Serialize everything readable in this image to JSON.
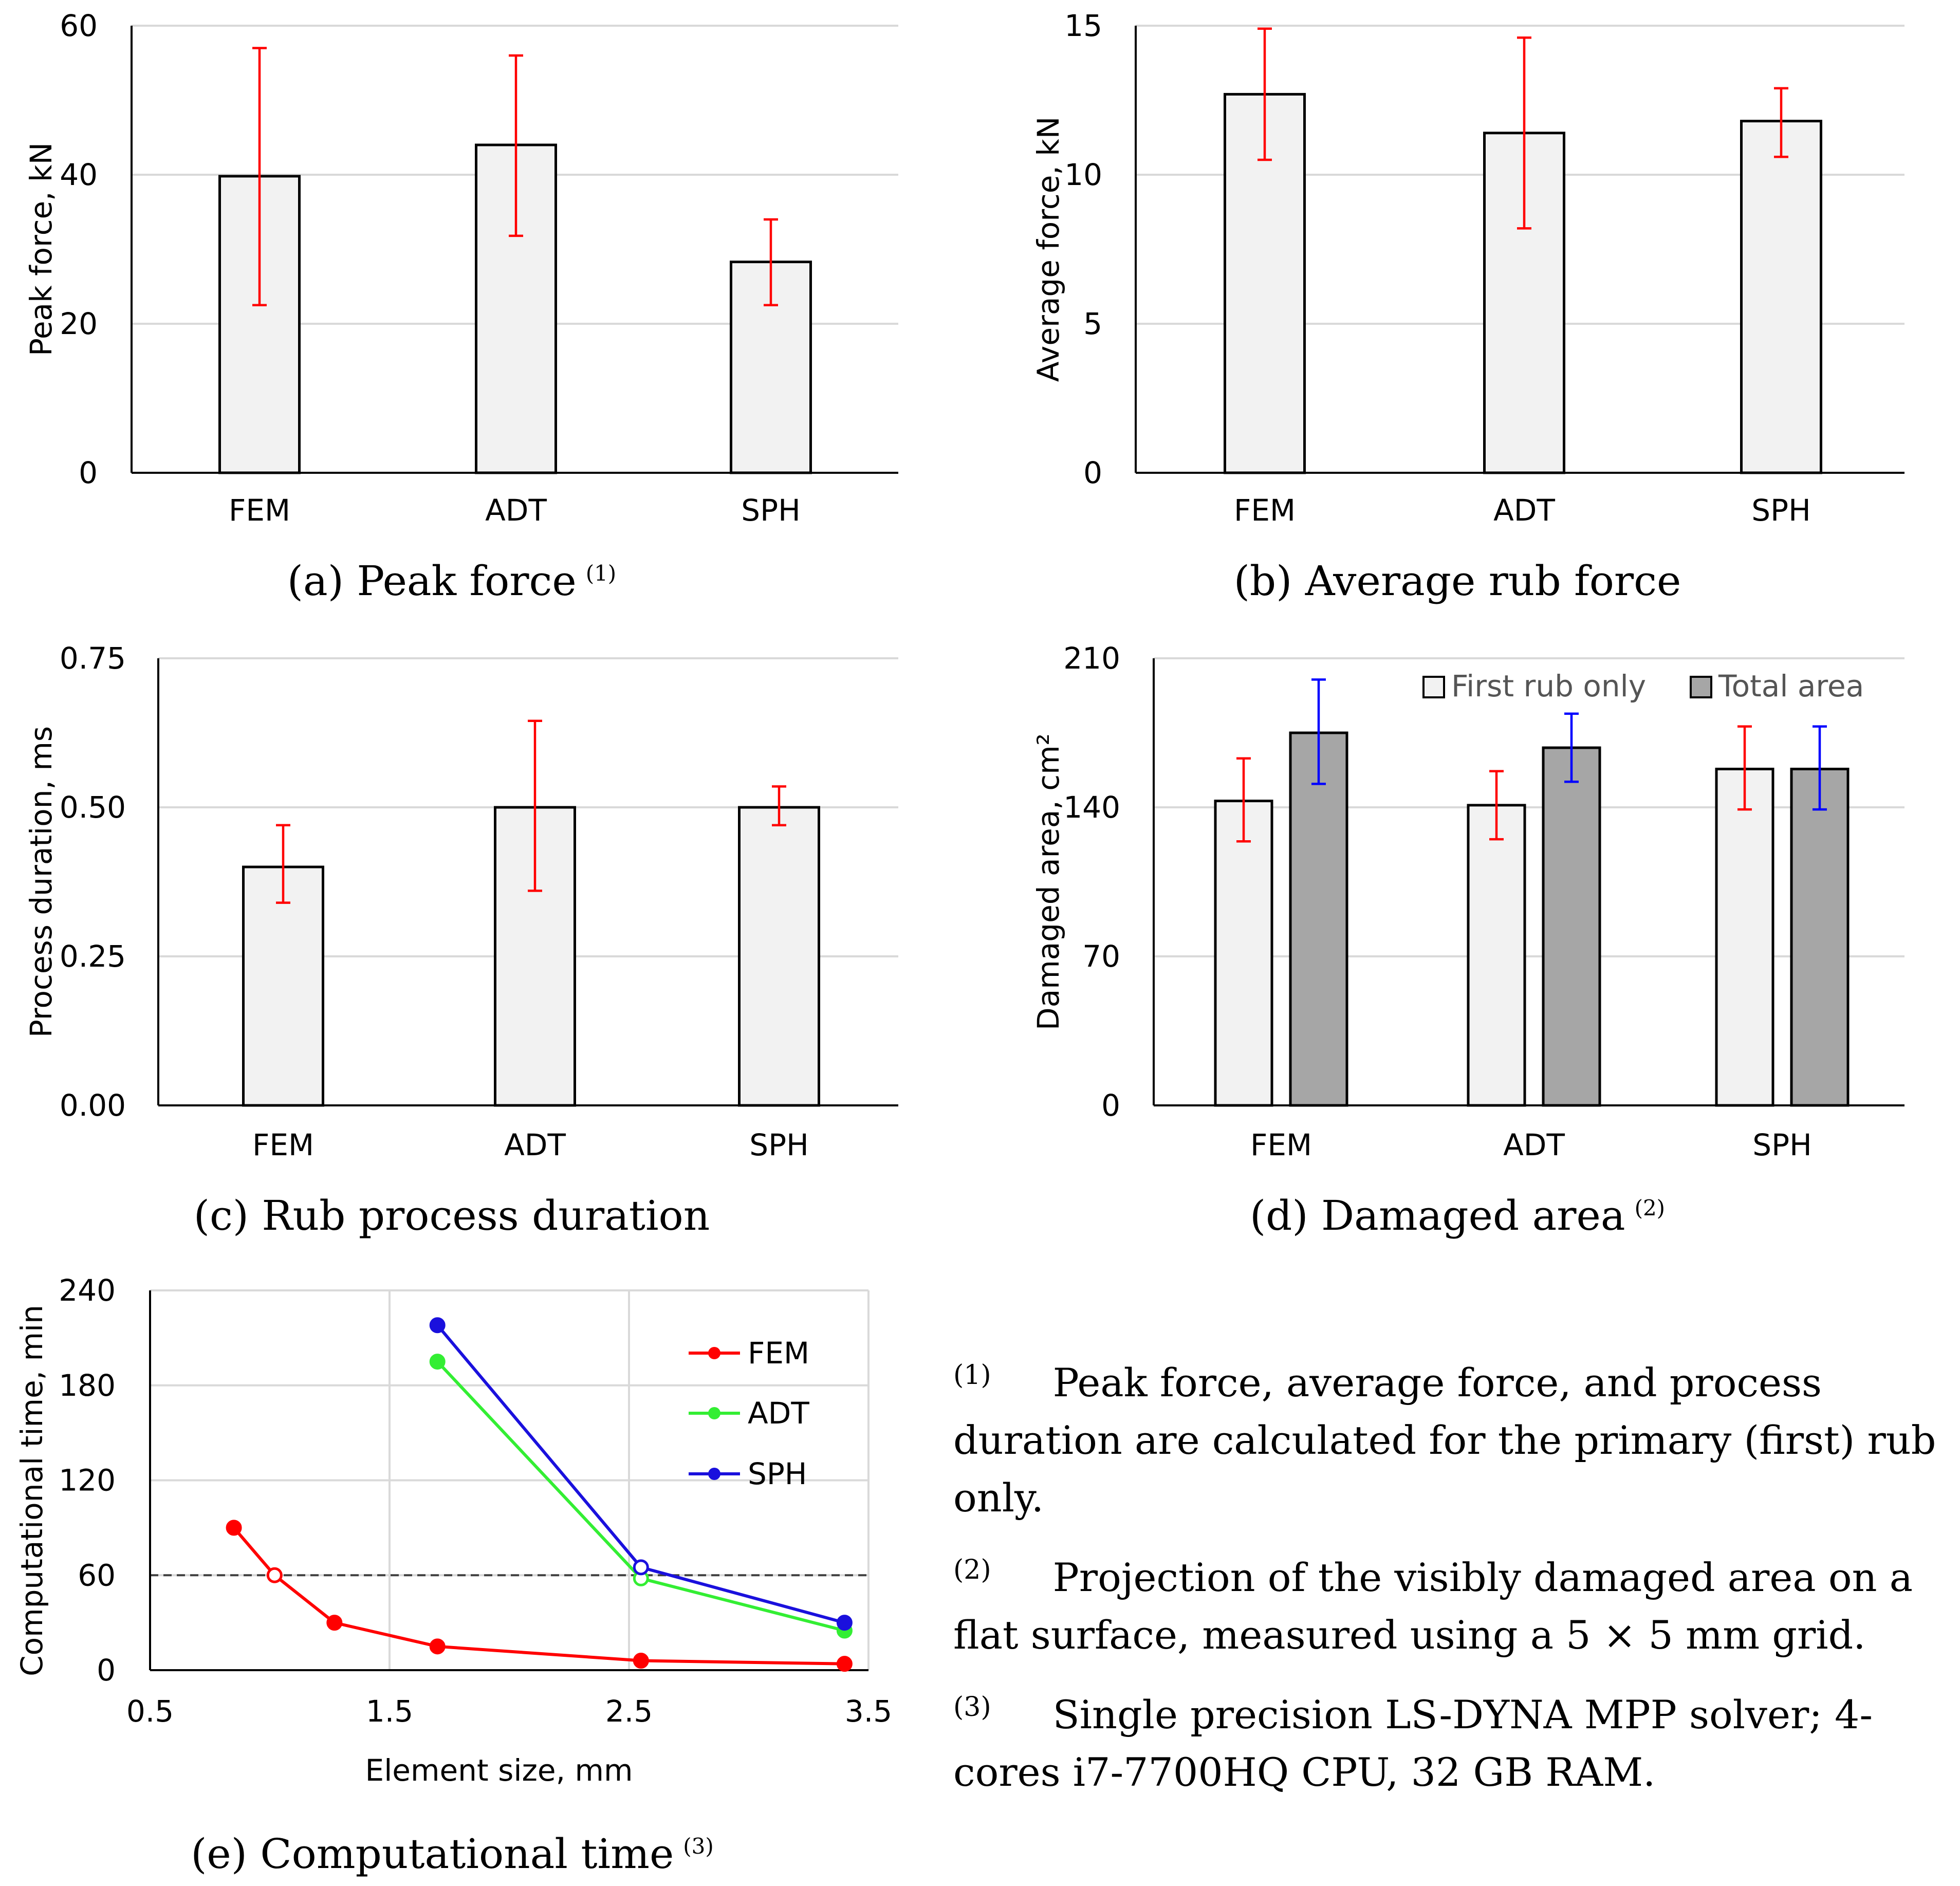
{
  "colors": {
    "bar_fill": "#f2f2f2",
    "bar_fill_dark": "#a6a6a6",
    "error_red": "#ff0000",
    "error_blue": "#0000ff",
    "fem": "#ff0000",
    "adt": "#33ee33",
    "sph": "#1a10dd",
    "ref_line": "#404040"
  },
  "chart_data": [
    {
      "id": "a",
      "type": "bar",
      "caption": "(a) Peak force",
      "caption_sup": "(1)",
      "ylabel": "Peak force, kN",
      "categories": [
        "FEM",
        "ADT",
        "SPH"
      ],
      "values": [
        39.8,
        44.0,
        28.3
      ],
      "error_low": [
        22.5,
        31.8,
        22.5
      ],
      "error_high": [
        57.0,
        56.0,
        34.0
      ],
      "ylim": [
        0,
        60
      ],
      "yticks": [
        0,
        20,
        40,
        60
      ],
      "ytick_labels": [
        "0",
        "20",
        "40",
        "60"
      ]
    },
    {
      "id": "b",
      "type": "bar",
      "caption": "(b) Average rub force",
      "ylabel": "Average force, kN",
      "categories": [
        "FEM",
        "ADT",
        "SPH"
      ],
      "values": [
        12.7,
        11.4,
        11.8
      ],
      "error_low": [
        10.5,
        8.2,
        10.6
      ],
      "error_high": [
        14.9,
        14.6,
        12.9
      ],
      "ylim": [
        0,
        15
      ],
      "yticks": [
        0,
        5,
        10,
        15
      ],
      "ytick_labels": [
        "0",
        "5",
        "10",
        "15"
      ]
    },
    {
      "id": "c",
      "type": "bar",
      "caption": "(c) Rub process duration",
      "ylabel": "Process duration, ms",
      "categories": [
        "FEM",
        "ADT",
        "SPH"
      ],
      "values": [
        0.4,
        0.5,
        0.5
      ],
      "error_low": [
        0.34,
        0.36,
        0.47
      ],
      "error_high": [
        0.47,
        0.645,
        0.535
      ],
      "ylim": [
        0,
        0.75
      ],
      "yticks": [
        0,
        0.25,
        0.5,
        0.75
      ],
      "ytick_labels": [
        "0.00",
        "0.25",
        "0.50",
        "0.75"
      ]
    },
    {
      "id": "d",
      "type": "bar",
      "caption": "(d) Damaged area",
      "caption_sup": "(2)",
      "ylabel": "Damaged area, cm²",
      "categories": [
        "FEM",
        "ADT",
        "SPH"
      ],
      "series": [
        {
          "name": "First rub only",
          "values": [
            143,
            141,
            158
          ],
          "error_low": [
            124,
            125,
            139
          ],
          "error_high": [
            163,
            157,
            178
          ]
        },
        {
          "name": "Total area",
          "values": [
            175,
            168,
            158
          ],
          "error_low": [
            151,
            152,
            139
          ],
          "error_high": [
            200,
            184,
            178
          ]
        }
      ],
      "ylim": [
        0,
        210
      ],
      "yticks": [
        0,
        70,
        140,
        210
      ],
      "ytick_labels": [
        "0",
        "70",
        "140",
        "210"
      ]
    },
    {
      "id": "e",
      "type": "line",
      "caption": "(e) Computational time",
      "caption_sup": "(3)",
      "xlabel": "Element size, mm",
      "ylabel": "Computational time, min",
      "xlim": [
        0.5,
        3.5
      ],
      "ylim": [
        0,
        240
      ],
      "xticks": [
        0.5,
        1.5,
        2.5,
        3.5
      ],
      "xtick_labels": [
        "0.5",
        "1.5",
        "2.5",
        "3.5"
      ],
      "yticks": [
        0,
        60,
        120,
        180,
        240
      ],
      "ytick_labels": [
        "0",
        "60",
        "120",
        "180",
        "240"
      ],
      "reference_line_y": 60,
      "series": [
        {
          "name": "FEM",
          "x": [
            0.85,
            1.02,
            1.27,
            1.7,
            2.55,
            3.4
          ],
          "y": [
            90,
            60,
            30,
            15,
            6,
            4
          ],
          "hollow_index": 1
        },
        {
          "name": "ADT",
          "x": [
            1.7,
            2.55,
            3.4
          ],
          "y": [
            195,
            58,
            25
          ],
          "hollow_index": 1
        },
        {
          "name": "SPH",
          "x": [
            1.7,
            2.55,
            3.4
          ],
          "y": [
            218,
            65,
            30
          ],
          "hollow_index": 1
        }
      ]
    }
  ],
  "notes": [
    {
      "num": "(1)",
      "text": "Peak force, average force, and process duration are calculated for the primary (first) rub only."
    },
    {
      "num": "(2)",
      "text": "Projection of the visibly damaged area on a flat surface, measured using a 5 × 5 mm grid."
    },
    {
      "num": "(3)",
      "text": "Single precision LS-DYNA MPP solver; 4-cores i7-7700HQ CPU, 32 GB RAM."
    }
  ]
}
